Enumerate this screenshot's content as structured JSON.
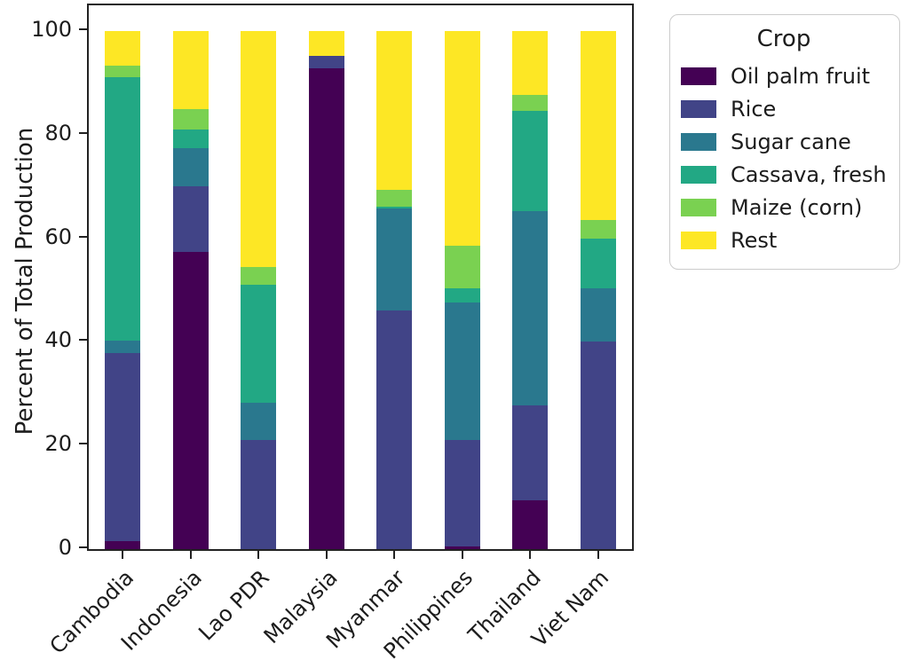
{
  "axes": {
    "ylabel": "Percent of Total Production",
    "yticks": [
      0,
      20,
      40,
      60,
      80,
      100
    ],
    "ylim": [
      0,
      105
    ]
  },
  "legend": {
    "title": "Crop"
  },
  "chart_data": {
    "type": "bar",
    "stacked": true,
    "title": "",
    "xlabel": "",
    "ylabel": "Percent of Total Production",
    "ylim": [
      0,
      105
    ],
    "yticks": [
      0,
      20,
      40,
      60,
      80,
      100
    ],
    "grid": false,
    "legend_title": "Crop",
    "legend_position": "outside upper right",
    "categories": [
      "Cambodia",
      "Indonesia",
      "Lao PDR",
      "Malaysia",
      "Myanmar",
      "Philippines",
      "Thailand",
      "Viet Nam"
    ],
    "series": [
      {
        "name": "Oil palm fruit",
        "color": "#440154",
        "values": [
          1.5,
          57.4,
          0,
          92.8,
          0,
          0.6,
          9.4,
          0
        ]
      },
      {
        "name": "Rice",
        "color": "#414487",
        "values": [
          36.4,
          12.6,
          21.1,
          2.4,
          46.1,
          20.5,
          18.4,
          40.1
        ]
      },
      {
        "name": "Sugar cane",
        "color": "#2a788e",
        "values": [
          2.3,
          7.4,
          7.2,
          0,
          19.6,
          26.6,
          37.5,
          10.3
        ]
      },
      {
        "name": "Cassava, fresh",
        "color": "#22a884",
        "values": [
          50.9,
          3.7,
          22.8,
          0,
          0.5,
          2.7,
          19.4,
          9.5
        ]
      },
      {
        "name": "Maize (corn)",
        "color": "#7ad151",
        "values": [
          2.2,
          3.8,
          3.4,
          0,
          3.1,
          8.1,
          3.0,
          3.7
        ]
      },
      {
        "name": "Rest",
        "color": "#fde725",
        "values": [
          6.7,
          15.1,
          45.5,
          4.8,
          30.7,
          41.5,
          12.3,
          36.4
        ]
      }
    ]
  }
}
